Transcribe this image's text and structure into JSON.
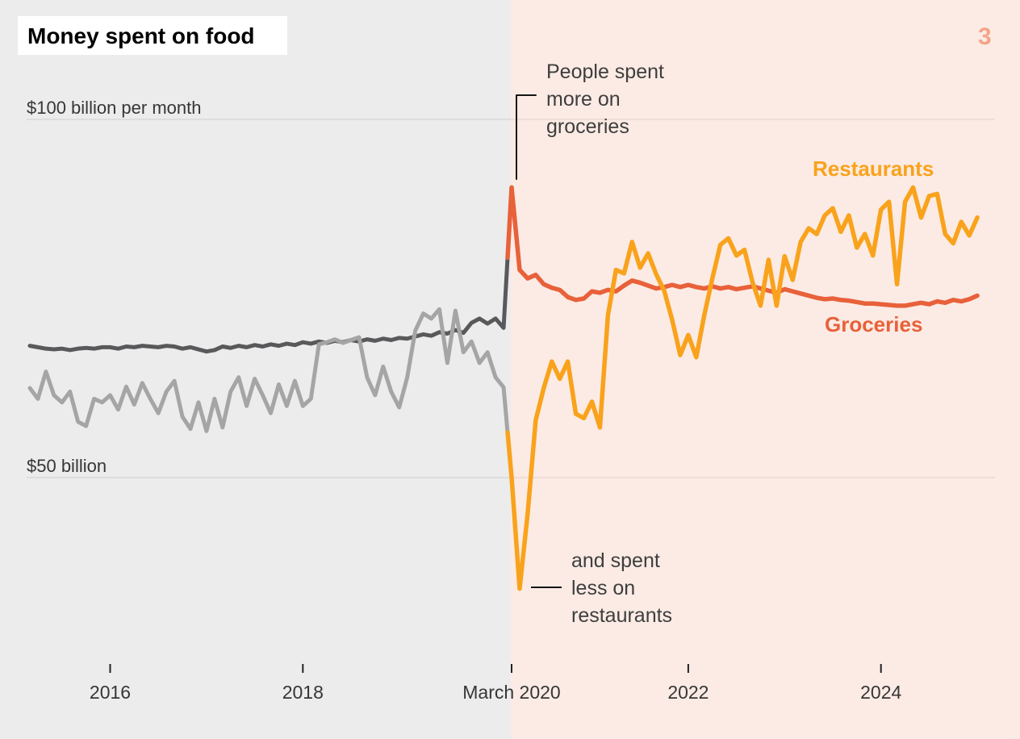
{
  "header": {
    "title": "Money spent on food",
    "page_number": "3"
  },
  "legend": {
    "restaurants": "Restaurants",
    "groceries": "Groceries"
  },
  "annotations": {
    "groceries_note": {
      "text": "People spent more on groceries",
      "lines": [
        "People spent",
        "more on",
        "groceries"
      ]
    },
    "restaurants_note": {
      "text": "and spent less on restaurants",
      "lines": [
        "and spent",
        "less on",
        "restaurants"
      ]
    }
  },
  "colors": {
    "background_left": "#ececec",
    "background_right": "#fbebe4",
    "grid_left": "#d8d8d8",
    "grid_right": "#e9d7d0",
    "axis_text": "#363636",
    "tick": "#222222",
    "annotation_text": "#3e3e3e",
    "connector": "#141414",
    "title_text": "#000000",
    "title_background": "#ffffff",
    "page_number": "#f6a387",
    "restaurants": "#f9a21b",
    "groceries": "#e8613a",
    "restaurants_pre": "#a5a5a5",
    "groceries_pre": "#59595b"
  },
  "chart_data": {
    "type": "line",
    "title": "Money spent on food",
    "ylabel": "$ billions per month",
    "unit": "billions of dollars per month",
    "x_start": "2015-03",
    "x_interval": "monthly",
    "divider_date": "2020-03",
    "divider_index": 60,
    "ylim": [
      30,
      105
    ],
    "y_gridlines": [
      {
        "value": 100,
        "label": "$100 billion per month"
      },
      {
        "value": 50,
        "label": "$50 billion"
      }
    ],
    "x_ticks": [
      {
        "label": "2016",
        "month_index": 10
      },
      {
        "label": "2018",
        "month_index": 34
      },
      {
        "label": "March 2020",
        "month_index": 60
      },
      {
        "label": "2022",
        "month_index": 82
      },
      {
        "label": "2024",
        "month_index": 106
      }
    ],
    "series": [
      {
        "id": "groceries",
        "name": "Groceries",
        "color_pre": "#59595b",
        "color_post": "#e8613a",
        "values": [
          68.4,
          68.2,
          68.0,
          67.9,
          68.0,
          67.8,
          68.0,
          68.1,
          68.0,
          68.2,
          68.2,
          68.0,
          68.3,
          68.2,
          68.4,
          68.3,
          68.2,
          68.4,
          68.3,
          68.0,
          68.2,
          67.9,
          67.6,
          67.8,
          68.3,
          68.1,
          68.4,
          68.2,
          68.5,
          68.3,
          68.6,
          68.4,
          68.7,
          68.5,
          68.9,
          68.7,
          69.0,
          68.8,
          69.1,
          68.9,
          69.2,
          69.0,
          69.3,
          69.1,
          69.4,
          69.2,
          69.5,
          69.4,
          69.7,
          70.0,
          69.8,
          70.3,
          70.1,
          70.6,
          70.2,
          71.6,
          72.2,
          71.5,
          72.2,
          70.9,
          90.5,
          79.0,
          77.8,
          78.3,
          77.0,
          76.5,
          76.2,
          75.2,
          74.8,
          75.0,
          76.0,
          75.8,
          76.2,
          76.0,
          76.8,
          77.5,
          77.2,
          76.8,
          76.4,
          76.6,
          76.9,
          76.6,
          76.9,
          76.6,
          76.4,
          76.7,
          76.4,
          76.6,
          76.3,
          76.5,
          76.7,
          76.4,
          76.1,
          75.8,
          76.3,
          76.0,
          75.7,
          75.4,
          75.1,
          74.9,
          75.0,
          74.8,
          74.7,
          74.5,
          74.3,
          74.3,
          74.2,
          74.1,
          74.0,
          74.0,
          74.2,
          74.4,
          74.2,
          74.6,
          74.4,
          74.8,
          74.6,
          74.9,
          75.4
        ]
      },
      {
        "id": "restaurants",
        "name": "Restaurants",
        "color_pre": "#a5a5a5",
        "color_post": "#f9a21b",
        "values": [
          62.5,
          61.0,
          64.8,
          61.5,
          60.5,
          62.0,
          57.8,
          57.2,
          61.0,
          60.5,
          61.5,
          59.5,
          62.7,
          60.2,
          63.2,
          61.0,
          59.0,
          62.0,
          63.5,
          58.5,
          56.8,
          60.5,
          56.5,
          61.0,
          57.0,
          62.0,
          64.0,
          60.0,
          63.8,
          61.5,
          59.0,
          63.0,
          60.0,
          63.5,
          60.0,
          61.0,
          68.6,
          68.9,
          69.3,
          68.8,
          69.2,
          69.6,
          64.0,
          61.5,
          65.5,
          62.0,
          59.8,
          64.0,
          70.5,
          72.9,
          72.2,
          73.5,
          66.0,
          73.3,
          67.5,
          69.0,
          66.0,
          67.5,
          64.0,
          62.6,
          50.0,
          34.5,
          45.0,
          58.0,
          62.5,
          66.2,
          63.8,
          66.2,
          58.9,
          58.3,
          60.6,
          57.0,
          72.7,
          79.0,
          78.5,
          82.9,
          79.3,
          81.3,
          78.4,
          76.1,
          72.0,
          67.1,
          69.9,
          66.8,
          72.7,
          77.8,
          82.5,
          83.4,
          81.0,
          81.8,
          77.3,
          74.0,
          80.4,
          74.0,
          80.9,
          77.6,
          82.9,
          84.8,
          84.0,
          86.6,
          87.6,
          84.3,
          86.6,
          82.1,
          84.0,
          81.0,
          87.4,
          88.5,
          77.0,
          88.5,
          90.5,
          86.3,
          89.3,
          89.6,
          84.0,
          82.7,
          85.7,
          83.8,
          86.3
        ]
      }
    ]
  }
}
